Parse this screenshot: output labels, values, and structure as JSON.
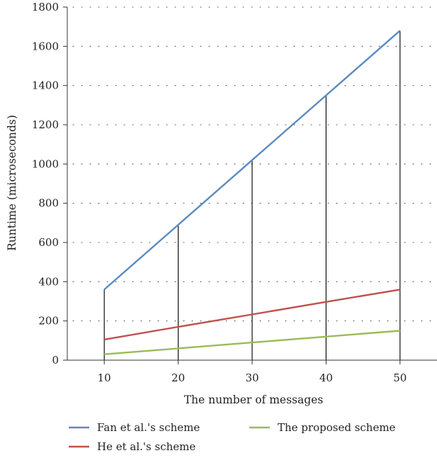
{
  "chart_data": {
    "type": "line",
    "xlabel": "The number of messages",
    "ylabel": "Runtime (microseconds)",
    "x": [
      10,
      20,
      30,
      40,
      50
    ],
    "x_ticks": [
      "10",
      "20",
      "30",
      "40",
      "50"
    ],
    "xlim": [
      5,
      55
    ],
    "ylim": [
      0,
      1800
    ],
    "y_ticks": [
      "0",
      "200",
      "400",
      "600",
      "800",
      "1000",
      "1200",
      "1400",
      "1600",
      "1800"
    ],
    "grid": "horizontal dotted",
    "drop_lines": true,
    "legend_position": "bottom",
    "series": [
      {
        "name": "Fan et al.'s scheme",
        "color": "#5b8bbf",
        "values": [
          360,
          690,
          1020,
          1350,
          1680
        ]
      },
      {
        "name": "He et al.'s scheme",
        "color": "#c0504d",
        "values": [
          105,
          170,
          233,
          297,
          360
        ]
      },
      {
        "name": "The proposed scheme",
        "color": "#9bbb59",
        "values": [
          30,
          60,
          90,
          120,
          150
        ]
      }
    ]
  }
}
